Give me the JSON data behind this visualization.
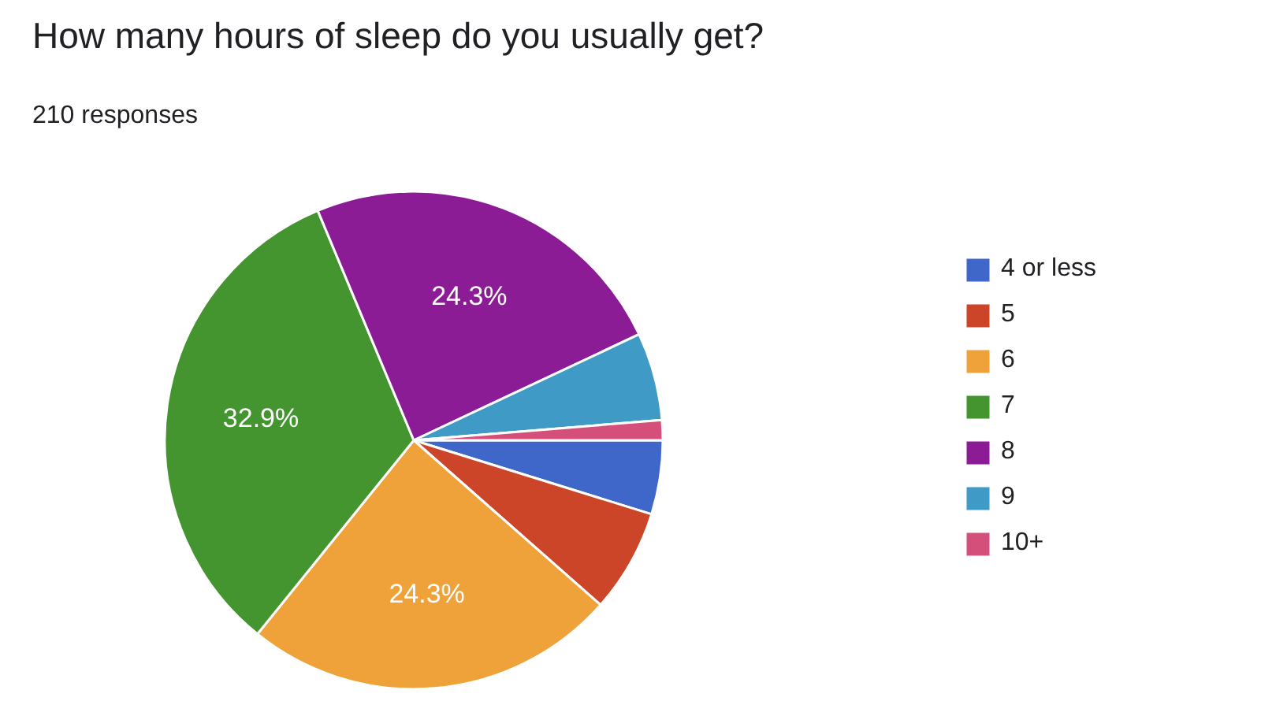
{
  "chart_data": {
    "type": "pie",
    "title": "How many hours of sleep do you usually get?",
    "subtitle": "210 responses",
    "categories": [
      "4 or less",
      "5",
      "6",
      "7",
      "8",
      "9",
      "10+"
    ],
    "values": [
      4.8,
      6.7,
      24.3,
      32.9,
      24.3,
      5.7,
      1.3
    ],
    "colors": [
      "#3f67c9",
      "#cc4529",
      "#f0a23a",
      "#44952f",
      "#8c1c95",
      "#3f9bc6",
      "#d4507a"
    ],
    "value_labels": [
      null,
      null,
      "24.3%",
      "32.9%",
      "24.3%",
      null,
      null
    ],
    "legend": "right"
  }
}
